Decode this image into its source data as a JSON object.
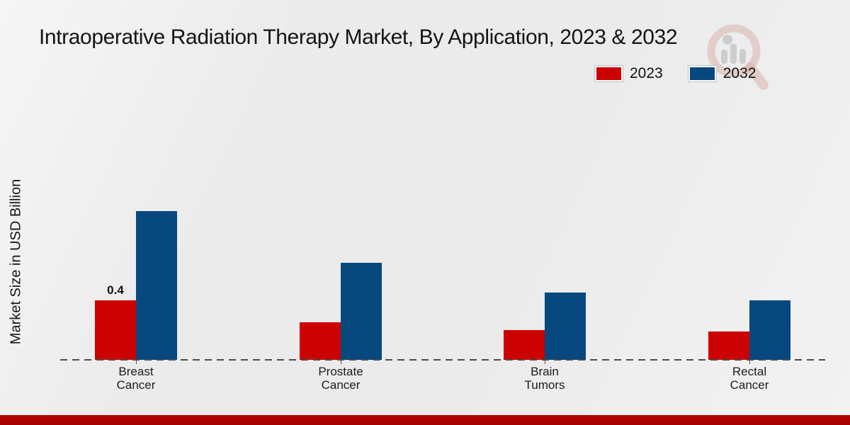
{
  "page": {
    "title": "Intraoperative Radiation Therapy Market, By Application, 2023 & 2032",
    "background_color": "#eaebea",
    "footer_bar_color": "#b30500",
    "watermark_icon": "market-research-magnifier-logo"
  },
  "chart_data": {
    "type": "bar",
    "title": "Intraoperative Radiation Therapy Market, By Application, 2023 & 2032",
    "xlabel": "",
    "ylabel": "Market Size in USD Billion",
    "categories": [
      "Breast Cancer",
      "Prostate Cancer",
      "Brain Tumors",
      "Rectal Cancer"
    ],
    "series": [
      {
        "name": "2023",
        "color": "#cc0202",
        "values": [
          0.4,
          0.25,
          0.2,
          0.19
        ]
      },
      {
        "name": "2032",
        "color": "#07497f",
        "values": [
          1.0,
          0.65,
          0.45,
          0.4
        ]
      }
    ],
    "data_labels": [
      {
        "series_index": 0,
        "category_index": 0,
        "text": "0.4"
      }
    ],
    "ylim": [
      0,
      1.05
    ],
    "gridlines": false,
    "y_axis_ticks_visible": false,
    "baseline_style": "dashed",
    "legend_position": "top-right"
  }
}
